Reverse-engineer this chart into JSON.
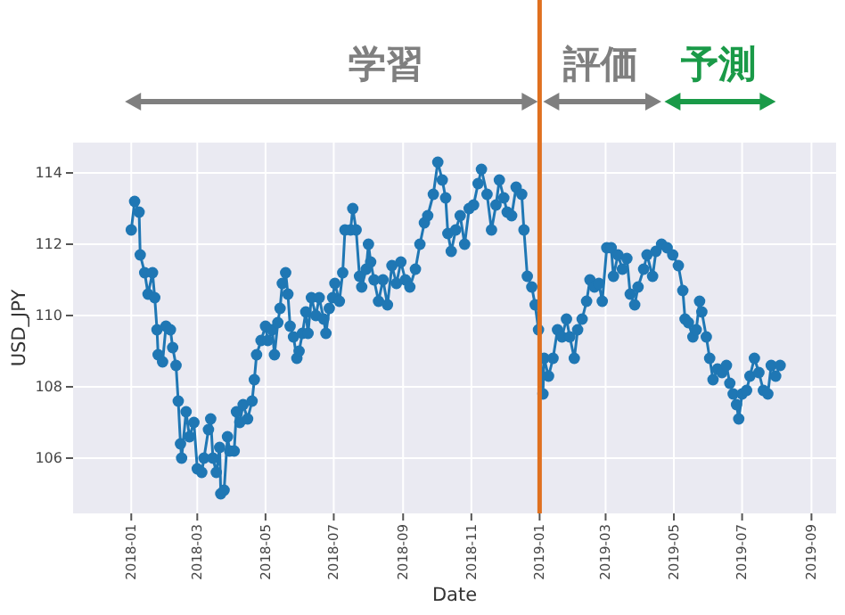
{
  "chart_data": {
    "type": "line",
    "xlabel": "Date",
    "ylabel": "USD_JPY",
    "annotations": [
      "学習",
      "評価",
      "予測"
    ],
    "x": [
      "2018-01-01",
      "2018-01-04",
      "2018-01-08",
      "2018-01-09",
      "2018-01-13",
      "2018-01-16",
      "2018-01-20",
      "2018-01-22",
      "2018-01-24",
      "2018-01-25",
      "2018-01-29",
      "2018-02-01",
      "2018-02-05",
      "2018-02-07",
      "2018-02-10",
      "2018-02-12",
      "2018-02-14",
      "2018-02-15",
      "2018-02-19",
      "2018-02-22",
      "2018-02-26",
      "2018-03-01",
      "2018-03-05",
      "2018-03-07",
      "2018-03-11",
      "2018-03-13",
      "2018-03-15",
      "2018-03-18",
      "2018-03-21",
      "2018-03-22",
      "2018-03-25",
      "2018-03-28",
      "2018-03-30",
      "2018-04-03",
      "2018-04-05",
      "2018-04-08",
      "2018-04-11",
      "2018-04-15",
      "2018-04-19",
      "2018-04-21",
      "2018-04-23",
      "2018-04-27",
      "2018-05-01",
      "2018-05-03",
      "2018-05-07",
      "2018-05-09",
      "2018-05-12",
      "2018-05-14",
      "2018-05-16",
      "2018-05-19",
      "2018-05-21",
      "2018-05-23",
      "2018-05-26",
      "2018-05-29",
      "2018-05-31",
      "2018-06-03",
      "2018-06-06",
      "2018-06-08",
      "2018-06-11",
      "2018-06-15",
      "2018-06-18",
      "2018-06-22",
      "2018-06-24",
      "2018-06-27",
      "2018-06-30",
      "2018-07-02",
      "2018-07-06",
      "2018-07-09",
      "2018-07-11",
      "2018-07-16",
      "2018-07-18",
      "2018-07-21",
      "2018-07-24",
      "2018-07-26",
      "2018-07-30",
      "2018-08-01",
      "2018-08-03",
      "2018-08-06",
      "2018-08-10",
      "2018-08-14",
      "2018-08-18",
      "2018-08-22",
      "2018-08-26",
      "2018-08-30",
      "2018-09-03",
      "2018-09-07",
      "2018-09-12",
      "2018-09-16",
      "2018-09-20",
      "2018-09-23",
      "2018-09-28",
      "2018-10-02",
      "2018-10-06",
      "2018-10-09",
      "2018-10-11",
      "2018-10-14",
      "2018-10-18",
      "2018-10-22",
      "2018-10-26",
      "2018-10-30",
      "2018-11-03",
      "2018-11-07",
      "2018-11-10",
      "2018-11-15",
      "2018-11-19",
      "2018-11-23",
      "2018-11-26",
      "2018-11-30",
      "2018-12-03",
      "2018-12-07",
      "2018-12-11",
      "2018-12-16",
      "2018-12-18",
      "2018-12-21",
      "2018-12-25",
      "2018-12-28",
      "2018-12-31",
      "2019-01-04",
      "2019-01-05",
      "2019-01-09",
      "2019-01-13",
      "2019-01-17",
      "2019-01-21",
      "2019-01-25",
      "2019-01-28",
      "2019-02-01",
      "2019-02-04",
      "2019-02-08",
      "2019-02-12",
      "2019-02-15",
      "2019-02-19",
      "2019-02-23",
      "2019-02-26",
      "2019-03-02",
      "2019-03-06",
      "2019-03-08",
      "2019-03-12",
      "2019-03-16",
      "2019-03-20",
      "2019-03-23",
      "2019-03-27",
      "2019-03-30",
      "2019-04-04",
      "2019-04-07",
      "2019-04-12",
      "2019-04-15",
      "2019-04-20",
      "2019-04-25",
      "2019-04-30",
      "2019-05-05",
      "2019-05-09",
      "2019-05-11",
      "2019-05-14",
      "2019-05-18",
      "2019-05-21",
      "2019-05-24",
      "2019-05-26",
      "2019-05-30",
      "2019-06-02",
      "2019-06-05",
      "2019-06-09",
      "2019-06-13",
      "2019-06-17",
      "2019-06-20",
      "2019-06-23",
      "2019-06-26",
      "2019-06-28",
      "2019-07-01",
      "2019-07-05",
      "2019-07-08",
      "2019-07-12",
      "2019-07-16",
      "2019-07-20",
      "2019-07-24",
      "2019-07-27",
      "2019-07-31",
      "2019-08-04"
    ],
    "series": [
      {
        "color": "#1f77b4",
        "values": [
          112.4,
          113.2,
          112.9,
          111.7,
          111.2,
          110.6,
          111.2,
          110.5,
          109.6,
          108.9,
          108.7,
          109.7,
          109.6,
          109.1,
          108.6,
          107.6,
          106.4,
          106.0,
          107.3,
          106.6,
          107.0,
          105.7,
          105.6,
          106.0,
          106.8,
          107.1,
          106.0,
          105.6,
          106.3,
          105.0,
          105.1,
          106.6,
          106.2,
          106.2,
          107.3,
          107.0,
          107.5,
          107.1,
          107.6,
          108.2,
          108.9,
          109.3,
          109.7,
          109.3,
          109.6,
          108.9,
          109.8,
          110.2,
          110.9,
          111.2,
          110.6,
          109.7,
          109.4,
          108.8,
          109.0,
          109.5,
          110.1,
          109.5,
          110.5,
          110.0,
          110.5,
          109.9,
          109.5,
          110.2,
          110.5,
          110.9,
          110.4,
          111.2,
          112.4,
          112.4,
          113.0,
          112.4,
          111.1,
          110.8,
          111.3,
          112.0,
          111.5,
          111.0,
          110.4,
          111.0,
          110.3,
          111.4,
          110.9,
          111.5,
          111.0,
          110.8,
          111.3,
          112.0,
          112.6,
          112.8,
          113.4,
          114.3,
          113.8,
          113.3,
          112.3,
          111.8,
          112.4,
          112.8,
          112.0,
          113.0,
          113.1,
          113.7,
          114.1,
          113.4,
          112.4,
          113.1,
          113.8,
          113.3,
          112.9,
          112.8,
          113.6,
          113.4,
          112.4,
          111.1,
          110.8,
          110.3,
          109.6,
          107.8,
          108.8,
          108.3,
          108.8,
          109.6,
          109.4,
          109.9,
          109.4,
          108.8,
          109.6,
          109.9,
          110.4,
          111.0,
          110.8,
          110.9,
          110.4,
          111.9,
          111.9,
          111.1,
          111.7,
          111.3,
          111.6,
          110.6,
          110.3,
          110.8,
          111.3,
          111.7,
          111.1,
          111.8,
          112.0,
          111.9,
          111.7,
          111.4,
          110.7,
          109.9,
          109.8,
          109.4,
          109.6,
          110.4,
          110.1,
          109.4,
          108.8,
          108.2,
          108.5,
          108.4,
          108.6,
          108.1,
          107.8,
          107.5,
          107.1,
          107.8,
          107.9,
          108.3,
          108.8,
          108.4,
          107.9,
          107.8,
          108.6,
          108.3,
          108.6
        ]
      }
    ],
    "xlim": [
      "2017-11-10",
      "2019-09-23"
    ],
    "xticks": [
      "2018-01",
      "2018-03",
      "2018-05",
      "2018-07",
      "2018-09",
      "2018-11",
      "2019-01",
      "2019-03",
      "2019-05",
      "2019-07",
      "2019-09"
    ],
    "ylim": [
      104.45,
      114.85
    ],
    "yticks": [
      106,
      108,
      110,
      112,
      114
    ],
    "grid": true,
    "marker": "circle",
    "line_style": "solid",
    "ref_lines": [
      {
        "axis": "x",
        "value": "2019-01-01",
        "color": "#e0701f"
      }
    ]
  }
}
